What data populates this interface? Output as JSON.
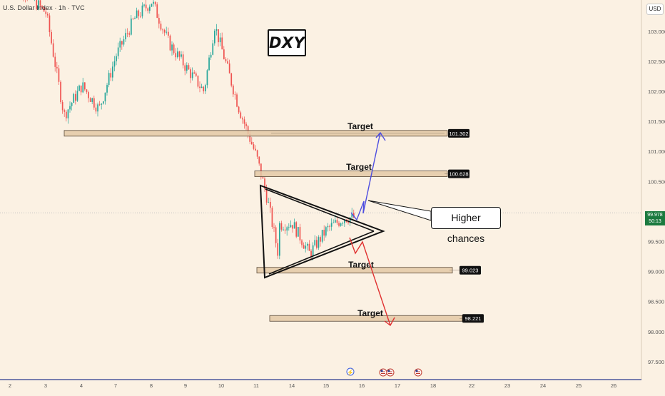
{
  "header": {
    "symbol_title": "U.S. Dollar Index · 1h · TVC",
    "currency": "USD"
  },
  "symbol_label": "DXY",
  "callout": "Higher chances",
  "last_price": {
    "value": "99.978",
    "countdown": "50:13"
  },
  "colors": {
    "background": "#fbf1e3",
    "up_candle": "#26a69a",
    "down_candle": "#ef5350",
    "zone_fill": "#e3c9a6",
    "up_arrow": "#4d4de0",
    "down_arrow": "#e03030",
    "axis_line": "#2a3b8f",
    "last_price_bg": "#1b7a3f"
  },
  "chart_data": {
    "type": "candlestick",
    "timeframe": "1h",
    "x_tick_labels": [
      "2",
      "3",
      "4",
      "7",
      "8",
      "9",
      "10",
      "11",
      "14",
      "15",
      "16",
      "17",
      "18",
      "22",
      "23",
      "24",
      "25",
      "26"
    ],
    "y_tick_labels": [
      "103.000",
      "102.500",
      "102.000",
      "101.500",
      "101.000",
      "100.500",
      "99.500",
      "99.000",
      "98.500",
      "98.000",
      "97.500"
    ],
    "ylim": [
      97.3,
      103.6
    ],
    "price_path": [
      [
        "2",
        103.9
      ],
      [
        "3",
        103.3
      ],
      [
        "3.5",
        101.6
      ],
      [
        "4",
        102.1
      ],
      [
        "4.5",
        101.7
      ],
      [
        "7",
        102.6
      ],
      [
        "7.5",
        103.2
      ],
      [
        "8",
        103.5
      ],
      [
        "8.5",
        102.8
      ],
      [
        "9",
        102.4
      ],
      [
        "9.5",
        102.0
      ],
      [
        "9.8",
        103.1
      ],
      [
        "10",
        102.7
      ],
      [
        "10.5",
        101.7
      ],
      [
        "11",
        100.9
      ],
      [
        "11.3",
        100.2
      ],
      [
        "11.6",
        99.3
      ],
      [
        "12",
        100.4
      ],
      [
        "13",
        99.5
      ],
      [
        "14",
        99.8
      ],
      [
        "14.5",
        99.3
      ],
      [
        "15",
        99.7
      ],
      [
        "15.5",
        99.9
      ]
    ],
    "zones": [
      {
        "label": "Target",
        "value": "101.302"
      },
      {
        "label": "Target",
        "value": "100.628"
      },
      {
        "label": "Target",
        "value": "99.023"
      },
      {
        "label": "Target",
        "value": "98.221"
      }
    ],
    "current_price": 99.978,
    "pattern": "symmetrical triangle",
    "projections": [
      {
        "direction": "up",
        "target": 101.302
      },
      {
        "direction": "down",
        "target": 98.221
      }
    ]
  }
}
